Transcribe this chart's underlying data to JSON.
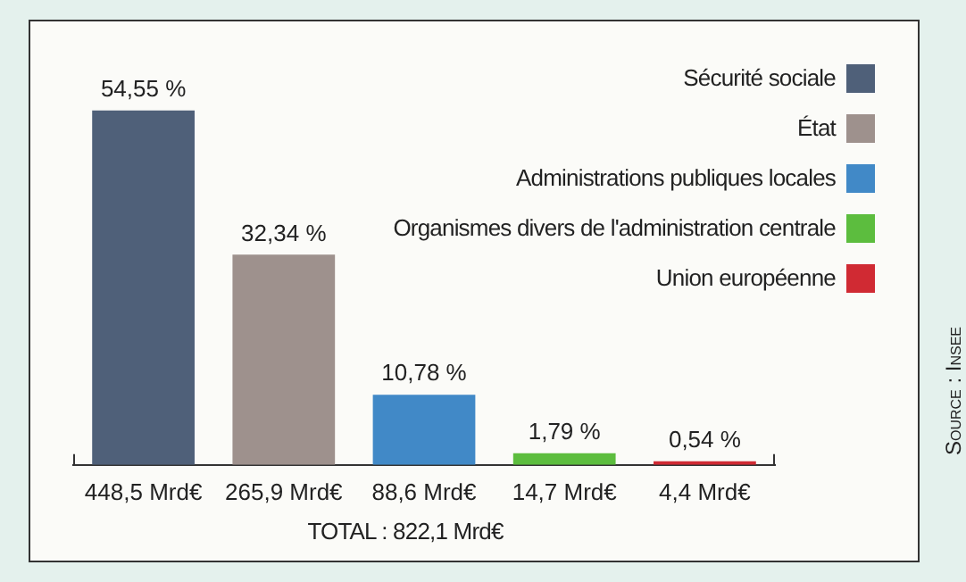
{
  "chart_data": {
    "type": "bar",
    "categories": [
      "448,5 Mrd€",
      "265,9 Mrd€",
      "88,6 Mrd€",
      "14,7 Mrd€",
      "4,4 Mrd€"
    ],
    "series": [
      {
        "name": "Sécurité sociale",
        "color": "#4f6079",
        "values": [
          54.55,
          null,
          null,
          null,
          null
        ],
        "value_labels": [
          "54,55 %",
          null,
          null,
          null,
          null
        ]
      },
      {
        "name": "État",
        "color": "#9e918d",
        "values": [
          null,
          32.34,
          null,
          null,
          null
        ],
        "value_labels": [
          null,
          "32,34 %",
          null,
          null,
          null
        ]
      },
      {
        "name": "Administrations publiques locales",
        "color": "#4189c7",
        "values": [
          null,
          null,
          10.78,
          null,
          null
        ],
        "value_labels": [
          null,
          null,
          "10,78 %",
          null,
          null
        ]
      },
      {
        "name": "Organismes divers de l'administration centrale",
        "color": "#5cbd3e",
        "values": [
          null,
          null,
          null,
          1.79,
          null
        ],
        "value_labels": [
          null,
          null,
          null,
          "1,79 %",
          null
        ]
      },
      {
        "name": "Union européenne",
        "color": "#d02a33",
        "values": [
          null,
          null,
          null,
          null,
          0.54
        ],
        "value_labels": [
          null,
          null,
          null,
          null,
          "0,54 %"
        ]
      }
    ],
    "annotations": [
      "TOTAL : 822,1 Mrd€",
      "Source : Insee"
    ],
    "legend": "top right",
    "grid": false
  }
}
